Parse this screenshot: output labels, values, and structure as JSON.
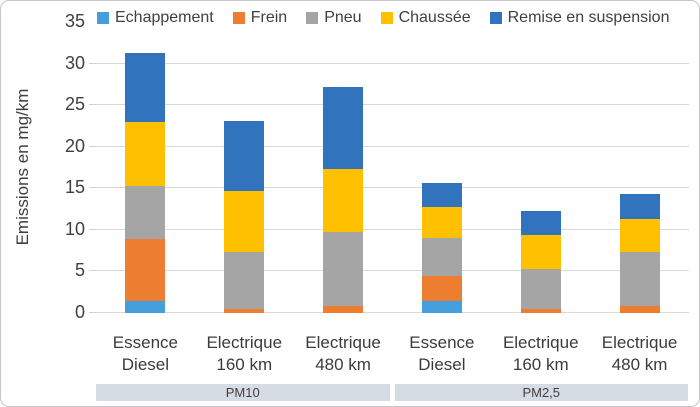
{
  "chart_data": {
    "type": "bar",
    "stacked": true,
    "title": "",
    "ylabel": "Emissions en mg/km",
    "ylim": [
      0,
      35
    ],
    "yticks": [
      0,
      5,
      10,
      15,
      20,
      25,
      30,
      35
    ],
    "grid": true,
    "legend_position": "top",
    "categories": [
      {
        "line1": "Essence",
        "line2": "Diesel"
      },
      {
        "line1": "Electrique",
        "line2": "160 km"
      },
      {
        "line1": "Electrique",
        "line2": "480 km"
      },
      {
        "line1": "Essence",
        "line2": "Diesel"
      },
      {
        "line1": "Electrique",
        "line2": "160 km"
      },
      {
        "line1": "Electrique",
        "line2": "480 km"
      }
    ],
    "groups": [
      {
        "label": "PM10",
        "start": 0,
        "count": 3
      },
      {
        "label": "PM2,5",
        "start": 3,
        "count": 3
      }
    ],
    "series": [
      {
        "name": "Echappement",
        "color": "#44A0DC",
        "values": [
          1.4,
          0,
          0,
          1.4,
          0,
          0
        ]
      },
      {
        "name": "Frein",
        "color": "#ED7D31",
        "values": [
          7.5,
          0.5,
          0.8,
          3.0,
          0.5,
          0.8
        ]
      },
      {
        "name": "Pneu",
        "color": "#A5A5A5",
        "values": [
          6.4,
          6.8,
          9.0,
          4.6,
          4.8,
          6.5
        ]
      },
      {
        "name": "Chaussée",
        "color": "#FFC000",
        "values": [
          7.7,
          7.4,
          7.5,
          3.7,
          4.1,
          4.0
        ]
      },
      {
        "name": "Remise en suspension",
        "color": "#3273BE",
        "values": [
          8.3,
          8.4,
          9.9,
          3.0,
          2.9,
          3.0
        ]
      }
    ],
    "totals": [
      31.3,
      23.1,
      27.2,
      15.7,
      12.3,
      14.2
    ],
    "colors": {
      "gridline": "#d9d9d9",
      "band_background": "#d6dce4",
      "text": "#404040",
      "border": "#c6c6c6"
    }
  }
}
